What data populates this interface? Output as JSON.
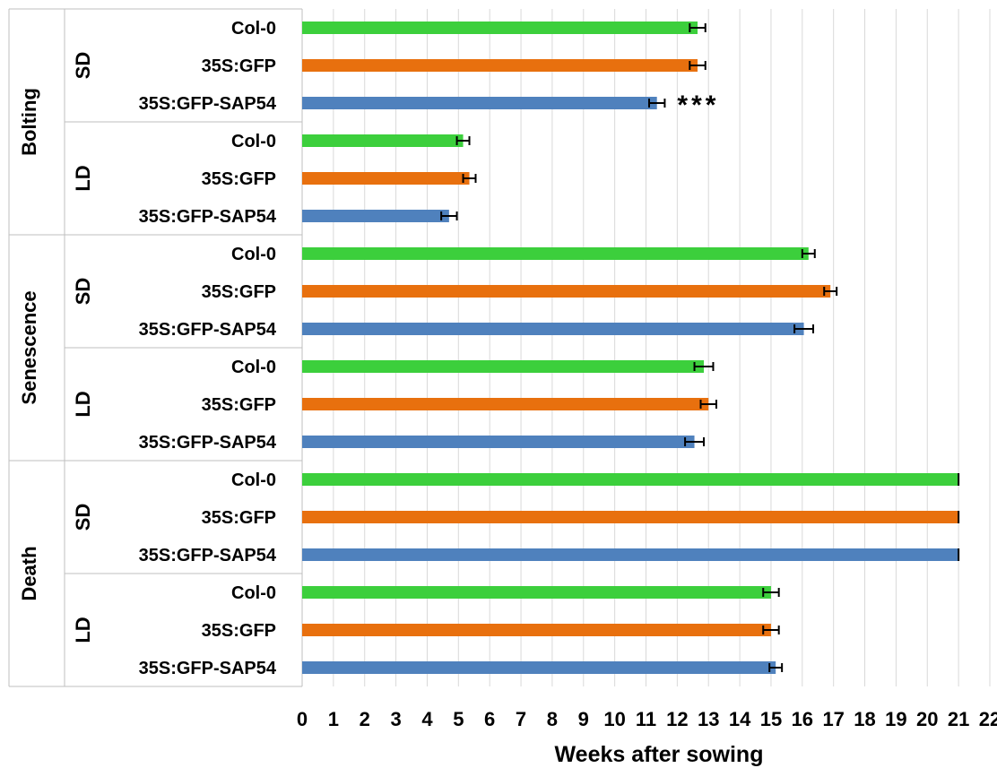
{
  "chart_data": {
    "type": "bar",
    "orientation": "horizontal",
    "xlabel": "Weeks after sowing",
    "xlim": [
      0,
      22
    ],
    "xticks": [
      "0",
      "1",
      "2",
      "3",
      "4",
      "5",
      "6",
      "7",
      "8",
      "9",
      "10",
      "11",
      "12",
      "13",
      "14",
      "15",
      "16",
      "17",
      "18",
      "19",
      "20",
      "21",
      "22"
    ],
    "grid": true,
    "stages": [
      {
        "name": "Bolting",
        "conditions": [
          {
            "name": "SD",
            "rows": [
              {
                "genotype": "Col-0",
                "value": 12.65,
                "error": 0.25
              },
              {
                "genotype": "35S:GFP",
                "value": 12.65,
                "error": 0.25
              },
              {
                "genotype": "35S:GFP-SAP54",
                "value": 11.35,
                "error": 0.25,
                "annotation": "***"
              }
            ]
          },
          {
            "name": "LD",
            "rows": [
              {
                "genotype": "Col-0",
                "value": 5.15,
                "error": 0.2
              },
              {
                "genotype": "35S:GFP",
                "value": 5.35,
                "error": 0.2
              },
              {
                "genotype": "35S:GFP-SAP54",
                "value": 4.7,
                "error": 0.25
              }
            ]
          }
        ]
      },
      {
        "name": "Senescence",
        "conditions": [
          {
            "name": "SD",
            "rows": [
              {
                "genotype": "Col-0",
                "value": 16.2,
                "error": 0.2
              },
              {
                "genotype": "35S:GFP",
                "value": 16.9,
                "error": 0.2
              },
              {
                "genotype": "35S:GFP-SAP54",
                "value": 16.05,
                "error": 0.3
              }
            ]
          },
          {
            "name": "LD",
            "rows": [
              {
                "genotype": "Col-0",
                "value": 12.85,
                "error": 0.3
              },
              {
                "genotype": "35S:GFP",
                "value": 13.0,
                "error": 0.25
              },
              {
                "genotype": "35S:GFP-SAP54",
                "value": 12.55,
                "error": 0.3
              }
            ]
          }
        ]
      },
      {
        "name": "Death",
        "conditions": [
          {
            "name": "SD",
            "rows": [
              {
                "genotype": "Col-0",
                "value": 21.0,
                "error": 0.0
              },
              {
                "genotype": "35S:GFP",
                "value": 21.0,
                "error": 0.0
              },
              {
                "genotype": "35S:GFP-SAP54",
                "value": 21.0,
                "error": 0.0
              }
            ]
          },
          {
            "name": "LD",
            "rows": [
              {
                "genotype": "Col-0",
                "value": 15.0,
                "error": 0.25
              },
              {
                "genotype": "35S:GFP",
                "value": 15.0,
                "error": 0.25
              },
              {
                "genotype": "35S:GFP-SAP54",
                "value": 15.15,
                "error": 0.2
              }
            ]
          }
        ]
      }
    ],
    "colors": {
      "Col-0": "#3ccf3c",
      "35S:GFP": "#e8700e",
      "35S:GFP-SAP54": "#4f81bd"
    }
  }
}
